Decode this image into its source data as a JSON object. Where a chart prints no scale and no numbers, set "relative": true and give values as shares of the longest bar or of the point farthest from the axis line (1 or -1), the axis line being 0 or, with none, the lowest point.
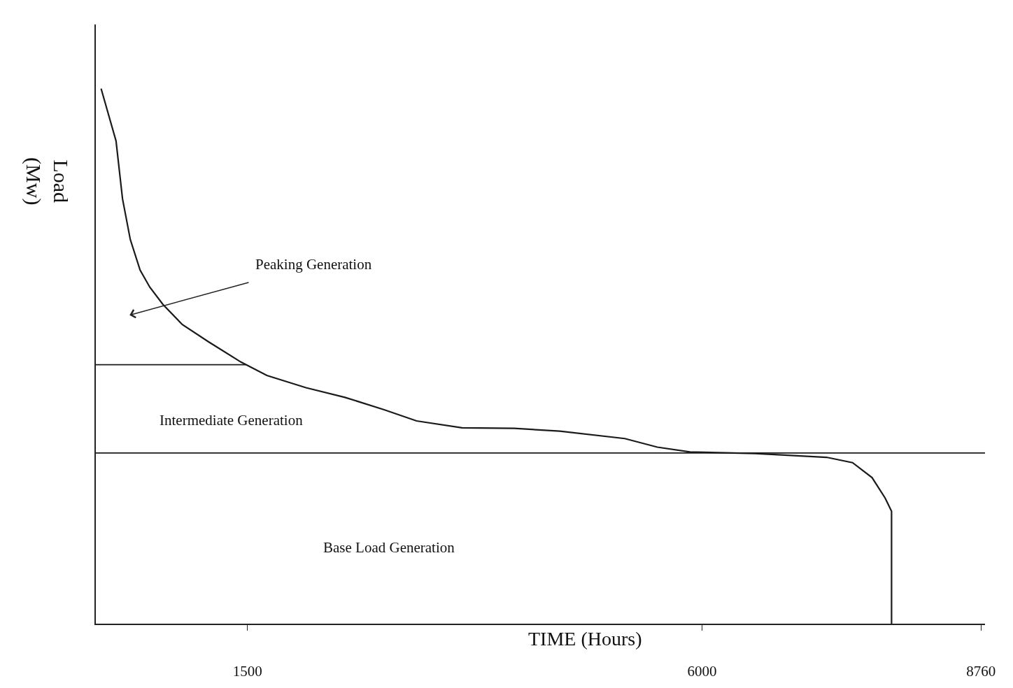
{
  "chart_data": {
    "type": "line",
    "relative": true,
    "xlabel": "TIME (Hours)",
    "ylabel": "Load (Mw)",
    "xlim": [
      0,
      8800
    ],
    "xticks": [
      1500,
      6000,
      8760
    ],
    "marker": "none",
    "line_style": "solid",
    "tick_labels": "x",
    "series": [
      {
        "color": "#1a1a1a",
        "x": [
          52,
          200,
          264,
          341,
          438,
          534,
          663,
          856,
          1114,
          1436,
          1693,
          2080,
          2466,
          2853,
          3174,
          3625,
          4140,
          4591,
          5235,
          5557,
          5879,
          6523,
          7231,
          7489,
          7682,
          7811,
          7875,
          7875
        ],
        "values": [
          1.0,
          0.902,
          0.794,
          0.718,
          0.661,
          0.629,
          0.597,
          0.559,
          0.527,
          0.489,
          0.464,
          0.441,
          0.423,
          0.4,
          0.379,
          0.366,
          0.365,
          0.36,
          0.346,
          0.33,
          0.321,
          0.318,
          0.311,
          0.301,
          0.273,
          0.235,
          0.21,
          0
        ]
      }
    ],
    "ref_lines": [
      {
        "axis": "y",
        "value": 0.484,
        "color": "#1a1a1a"
      },
      {
        "axis": "y",
        "value": 0.319,
        "color": "#1a1a1a"
      }
    ],
    "annotations": [
      "Peaking Generation",
      "Intermediate Generation",
      "Base Load Generation"
    ]
  }
}
